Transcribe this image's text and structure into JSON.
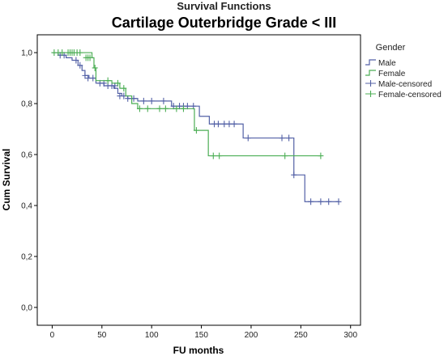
{
  "super_title": "Survival Functions",
  "title": "Cartilage Outerbridge Grade < III",
  "chart_data": {
    "type": "line",
    "step": true,
    "xlabel": "FU months",
    "ylabel": "Cum Survival",
    "xlim": [
      -15,
      310
    ],
    "ylim": [
      -0.07,
      1.07
    ],
    "x_ticks": [
      0,
      50,
      100,
      150,
      200,
      250,
      300
    ],
    "y_ticks": [
      0,
      0.2,
      0.4,
      0.6,
      0.8,
      1.0
    ],
    "x_tick_labels": [
      "0",
      "50",
      "100",
      "150",
      "200",
      "250",
      "300"
    ],
    "y_tick_labels": [
      "0,0",
      "0,2",
      "0,4",
      "0,6",
      "0,8",
      "1,0"
    ],
    "grid": false,
    "legend_title": "Gender",
    "legend_position": "top-right",
    "legend_entries": [
      "Male",
      "Female",
      "Male-censored",
      "Female-censored"
    ],
    "series": [
      {
        "name": "Male",
        "color": "#5361a6",
        "steps": [
          [
            0,
            1.0
          ],
          [
            6,
            0.99
          ],
          [
            14,
            0.98
          ],
          [
            20,
            0.97
          ],
          [
            26,
            0.95
          ],
          [
            30,
            0.93
          ],
          [
            33,
            0.91
          ],
          [
            37,
            0.9
          ],
          [
            44,
            0.88
          ],
          [
            52,
            0.87
          ],
          [
            62,
            0.86
          ],
          [
            66,
            0.84
          ],
          [
            70,
            0.83
          ],
          [
            76,
            0.82
          ],
          [
            86,
            0.81
          ],
          [
            120,
            0.79
          ],
          [
            148,
            0.75
          ],
          [
            158,
            0.72
          ],
          [
            192,
            0.665
          ],
          [
            243,
            0.52
          ],
          [
            254,
            0.415
          ],
          [
            288,
            0.415
          ]
        ],
        "censored": [
          [
            8,
            0.99
          ],
          [
            12,
            0.99
          ],
          [
            24,
            0.97
          ],
          [
            28,
            0.95
          ],
          [
            33,
            0.91
          ],
          [
            36,
            0.9
          ],
          [
            41,
            0.9
          ],
          [
            48,
            0.88
          ],
          [
            52,
            0.88
          ],
          [
            56,
            0.87
          ],
          [
            60,
            0.87
          ],
          [
            63,
            0.87
          ],
          [
            68,
            0.83
          ],
          [
            72,
            0.83
          ],
          [
            76,
            0.82
          ],
          [
            82,
            0.82
          ],
          [
            92,
            0.81
          ],
          [
            100,
            0.81
          ],
          [
            112,
            0.81
          ],
          [
            122,
            0.79
          ],
          [
            128,
            0.79
          ],
          [
            132,
            0.79
          ],
          [
            136,
            0.79
          ],
          [
            142,
            0.79
          ],
          [
            163,
            0.72
          ],
          [
            167,
            0.72
          ],
          [
            173,
            0.72
          ],
          [
            178,
            0.72
          ],
          [
            183,
            0.72
          ],
          [
            197,
            0.665
          ],
          [
            231,
            0.665
          ],
          [
            238,
            0.665
          ],
          [
            243,
            0.52
          ],
          [
            260,
            0.415
          ],
          [
            270,
            0.415
          ],
          [
            278,
            0.415
          ],
          [
            288,
            0.415
          ]
        ]
      },
      {
        "name": "Female",
        "color": "#4cae55",
        "steps": [
          [
            0,
            1.0
          ],
          [
            40,
            0.98
          ],
          [
            42,
            0.94
          ],
          [
            44,
            0.89
          ],
          [
            60,
            0.88
          ],
          [
            68,
            0.86
          ],
          [
            74,
            0.83
          ],
          [
            80,
            0.8
          ],
          [
            86,
            0.78
          ],
          [
            143,
            0.695
          ],
          [
            157,
            0.595
          ],
          [
            270,
            0.595
          ]
        ],
        "censored": [
          [
            2,
            1.0
          ],
          [
            6,
            1.0
          ],
          [
            10,
            1.0
          ],
          [
            16,
            1.0
          ],
          [
            18,
            1.0
          ],
          [
            20,
            1.0
          ],
          [
            22,
            1.0
          ],
          [
            25,
            1.0
          ],
          [
            28,
            1.0
          ],
          [
            34,
            0.98
          ],
          [
            36,
            0.98
          ],
          [
            38,
            0.98
          ],
          [
            43,
            0.94
          ],
          [
            56,
            0.89
          ],
          [
            66,
            0.88
          ],
          [
            72,
            0.86
          ],
          [
            88,
            0.78
          ],
          [
            96,
            0.78
          ],
          [
            108,
            0.78
          ],
          [
            114,
            0.78
          ],
          [
            125,
            0.78
          ],
          [
            132,
            0.78
          ],
          [
            145,
            0.695
          ],
          [
            162,
            0.595
          ],
          [
            168,
            0.595
          ],
          [
            234,
            0.595
          ],
          [
            270,
            0.595
          ]
        ]
      }
    ]
  }
}
